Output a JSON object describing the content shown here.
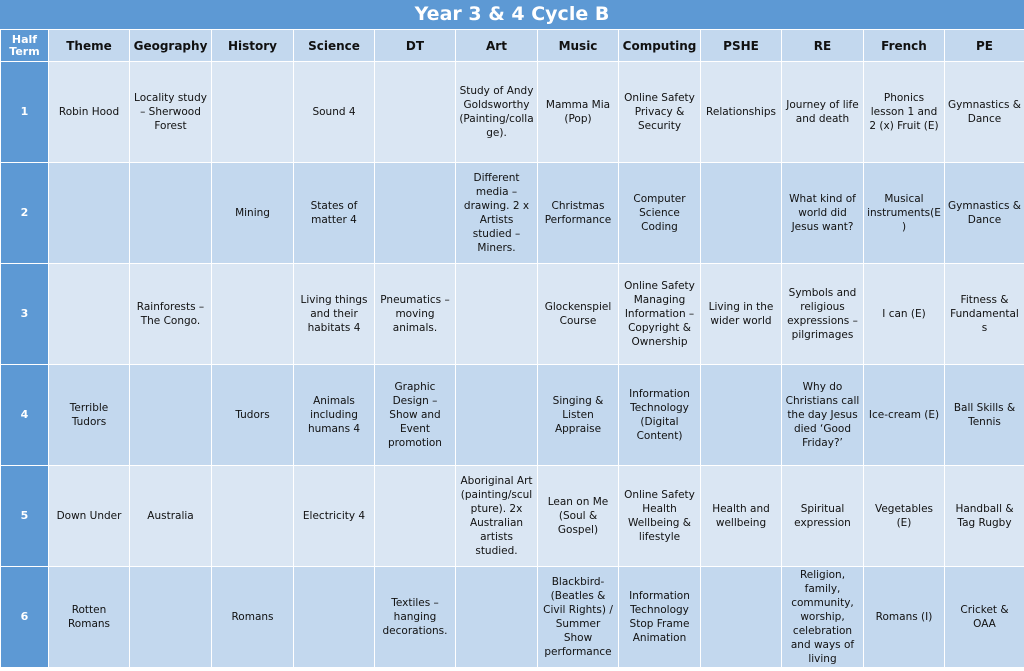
{
  "title": "Year 3 & 4 Cycle B",
  "headers": [
    "Half Term",
    "Theme",
    "Geography",
    "History",
    "Science",
    "DT",
    "Art",
    "Music",
    "Computing",
    "PSHE",
    "RE",
    "French",
    "PE"
  ],
  "rows": [
    [
      "1",
      "Robin Hood",
      "Locality study – Sherwood Forest",
      "",
      "Sound 4",
      "",
      "Study of Andy Goldsworthy (Painting/collage).",
      "Mamma Mia (Pop)",
      "Online Safety Privacy & Security",
      "Relationships",
      "Journey of life and death",
      "Phonics lesson 1 and 2 (x) Fruit (E)",
      "Gymnastics & Dance"
    ],
    [
      "2",
      "",
      "",
      "Mining",
      "States of matter 4",
      "",
      "Different media – drawing. 2 x Artists studied – Miners.",
      "Christmas Performance",
      "Computer Science Coding",
      "",
      "What kind of world did Jesus want?",
      "Musical instruments(E)",
      "Gymnastics & Dance"
    ],
    [
      "3",
      "",
      "Rainforests – The Congo.",
      "",
      "Living things and their habitats 4",
      "Pneumatics – moving animals.",
      "",
      "Glockenspiel Course",
      "Online Safety Managing Information – Copyright & Ownership",
      "Living in the wider world",
      "Symbols and religious expressions – pilgrimages",
      "I can (E)",
      "Fitness & Fundamentals"
    ],
    [
      "4",
      "Terrible Tudors",
      "",
      "Tudors",
      "Animals including humans 4",
      "Graphic Design – Show and Event promotion",
      "",
      "Singing & Listen Appraise",
      "Information Technology (Digital Content)",
      "",
      "Why do Christians call the day Jesus died ‘Good Friday?’",
      "Ice-cream (E)",
      "Ball Skills & Tennis"
    ],
    [
      "5",
      "Down Under",
      "Australia",
      "",
      "Electricity 4",
      "",
      "Aboriginal Art (painting/sculpture). 2x Australian artists studied.",
      "Lean on Me (Soul & Gospel)",
      "Online Safety Health Wellbeing & lifestyle",
      "Health and wellbeing",
      "Spiritual expression",
      "Vegetables (E)",
      "Handball & Tag Rugby"
    ],
    [
      "6",
      "Rotten Romans",
      "",
      "Romans",
      "",
      "Textiles – hanging decorations.",
      "",
      "Blackbird- (Beatles & Civil Rights) / Summer Show performance",
      "Information Technology Stop Frame Animation",
      "",
      "Religion, family, community, worship, celebration and ways of living",
      "Romans (I)",
      "Cricket & OAA"
    ]
  ]
}
